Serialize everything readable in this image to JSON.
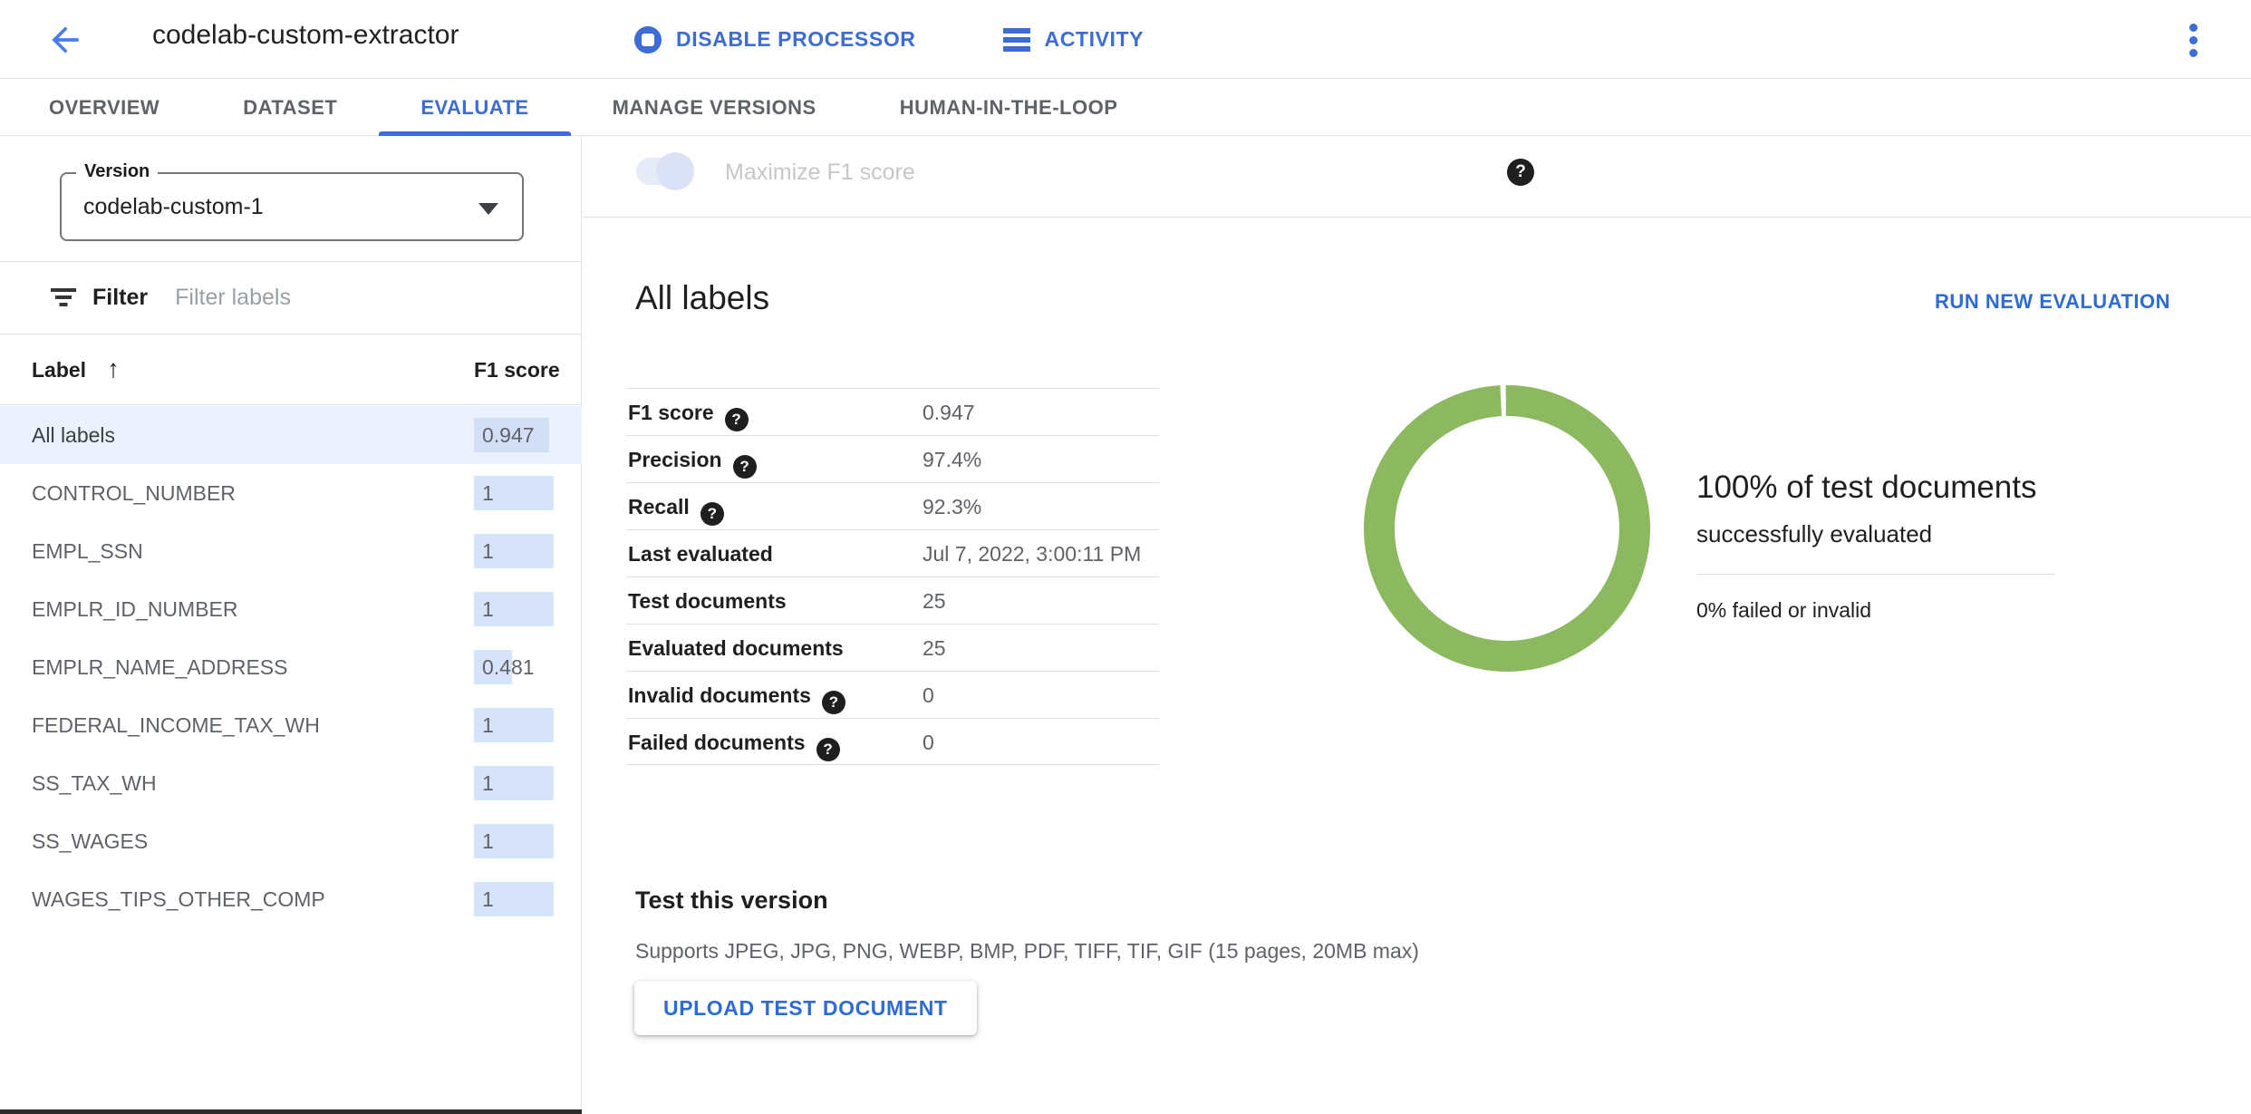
{
  "header": {
    "title": "codelab-custom-extractor",
    "disable_processor_label": "DISABLE PROCESSOR",
    "activity_label": "ACTIVITY"
  },
  "tabs": [
    {
      "label": "OVERVIEW",
      "active": false
    },
    {
      "label": "DATASET",
      "active": false
    },
    {
      "label": "EVALUATE",
      "active": true
    },
    {
      "label": "MANAGE VERSIONS",
      "active": false
    },
    {
      "label": "HUMAN-IN-THE-LOOP",
      "active": false
    }
  ],
  "sidebar": {
    "version_field": {
      "label": "Version",
      "value": "codelab-custom-1"
    },
    "filter": {
      "label": "Filter",
      "placeholder": "Filter labels"
    },
    "table": {
      "label_header": "Label",
      "score_header": "F1 score",
      "sort": "ascending",
      "rows": [
        {
          "label": "All labels",
          "score": "0.947",
          "score_value": 0.947,
          "selected": true
        },
        {
          "label": "CONTROL_NUMBER",
          "score": "1",
          "score_value": 1,
          "selected": false
        },
        {
          "label": "EMPL_SSN",
          "score": "1",
          "score_value": 1,
          "selected": false
        },
        {
          "label": "EMPLR_ID_NUMBER",
          "score": "1",
          "score_value": 1,
          "selected": false
        },
        {
          "label": "EMPLR_NAME_ADDRESS",
          "score": "0.481",
          "score_value": 0.481,
          "selected": false
        },
        {
          "label": "FEDERAL_INCOME_TAX_WH",
          "score": "1",
          "score_value": 1,
          "selected": false
        },
        {
          "label": "SS_TAX_WH",
          "score": "1",
          "score_value": 1,
          "selected": false
        },
        {
          "label": "SS_WAGES",
          "score": "1",
          "score_value": 1,
          "selected": false
        },
        {
          "label": "WAGES_TIPS_OTHER_COMP",
          "score": "1",
          "score_value": 1,
          "selected": false
        }
      ]
    }
  },
  "main": {
    "toggle": {
      "label": "Maximize F1 score",
      "state": "on",
      "enabled": false
    },
    "section_title": "All labels",
    "run_new_evaluation_label": "RUN NEW EVALUATION",
    "metrics": [
      {
        "label": "F1 score",
        "value": "0.947",
        "help": true
      },
      {
        "label": "Precision",
        "value": "97.4%",
        "help": true
      },
      {
        "label": "Recall",
        "value": "92.3%",
        "help": true
      },
      {
        "label": "Last evaluated",
        "value": "Jul 7, 2022, 3:00:11 PM",
        "help": false
      },
      {
        "label": "Test documents",
        "value": "25",
        "help": false
      },
      {
        "label": "Evaluated documents",
        "value": "25",
        "help": false
      },
      {
        "label": "Invalid documents",
        "value": "0",
        "help": true
      },
      {
        "label": "Failed documents",
        "value": "0",
        "help": true
      }
    ],
    "donut": {
      "type": "donut",
      "percent_success": 100,
      "percent_failed": 0,
      "color": "#8cb85f",
      "headline": "100% of test documents",
      "subline": "successfully evaluated",
      "failed_text": "0% failed or invalid"
    },
    "test_section": {
      "title": "Test this version",
      "supports": "Supports JPEG, JPG, PNG, WEBP, BMP, PDF, TIFF, TIF, GIF (15 pages, 20MB max)",
      "upload_button_label": "UPLOAD TEST DOCUMENT"
    }
  },
  "colors": {
    "accent_blue": "#3d6cd4",
    "link_blue": "#2e6bd3",
    "donut_green": "#8cb85f",
    "selected_row_bg": "#ecf2fd",
    "score_chip_bg": "#d7e3f8",
    "help_icon_bg": "#1f1f1f"
  }
}
